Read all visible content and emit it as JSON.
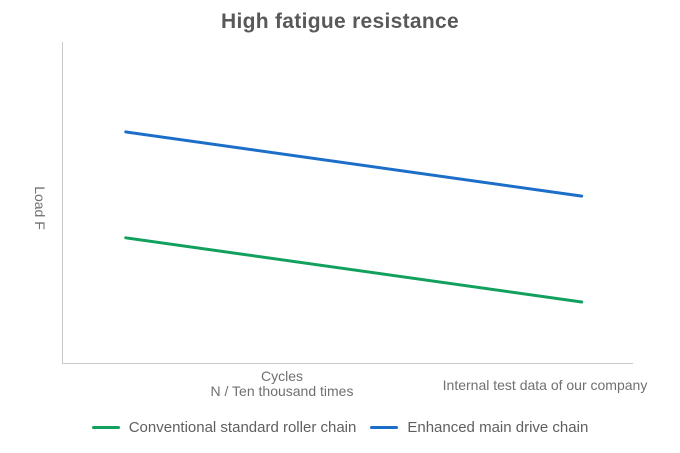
{
  "chart_data": {
    "type": "line",
    "title": "High fatigue resistance",
    "xlabel": "Cycles\nN / Ten thousand times",
    "ylabel": "Load F",
    "annotation": "Internal test data of our company",
    "legend_position": "bottom",
    "grid": false,
    "axes": {
      "x_ticks": [],
      "y_ticks": [],
      "xlim": [
        0,
        1
      ],
      "ylim": [
        0,
        1
      ]
    },
    "series": [
      {
        "name": "Conventional standard roller chain",
        "color": "#12a05e",
        "x": [
          0.11,
          0.91
        ],
        "y": [
          0.39,
          0.19
        ]
      },
      {
        "name": "Enhanced main drive chain",
        "color": "#1c6fc8",
        "x": [
          0.11,
          0.91
        ],
        "y": [
          0.72,
          0.52
        ]
      }
    ],
    "colors": {
      "title_color": "#595959",
      "axis_text_color": "#707070",
      "axis_line_color": "#c9c9c9",
      "legend_text_color": "#5f5f5f"
    }
  }
}
